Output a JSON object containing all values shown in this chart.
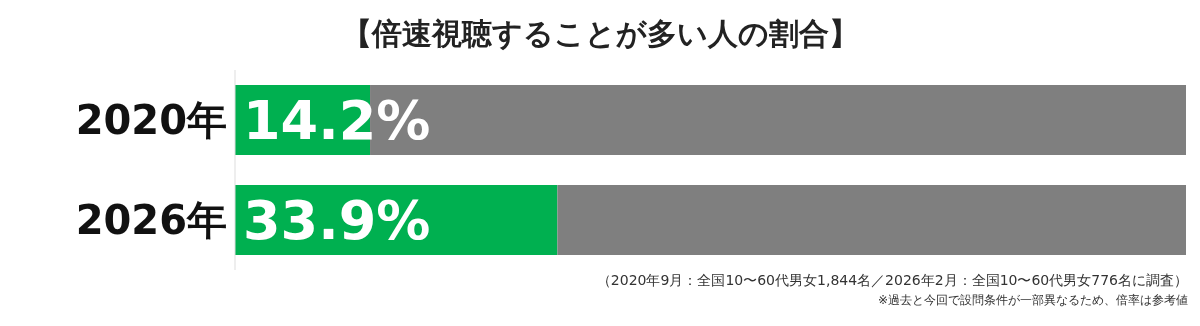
{
  "chart_data": {
    "type": "bar",
    "orientation": "horizontal",
    "stacked": true,
    "title": "【倍速視聴することが多い人の割合】",
    "categories": [
      "2020年",
      "2026年"
    ],
    "series": [
      {
        "color": "#00b050",
        "values": [
          14.2,
          33.9
        ],
        "value_labels": [
          "14.2%",
          "33.9%"
        ]
      },
      {
        "color": "#7f7f7f",
        "values": [
          85.8,
          66.1
        ]
      }
    ],
    "xlim": [
      0,
      100
    ],
    "tick_labels": "y",
    "legend": false,
    "grid": false,
    "annotations": [
      "（2020年9月：全国10〜60代男女1,844名／2026年2月：全国10〜60代男女776名に調査）",
      "※過去と今回で設問条件が一部異なるため、倍率は参考値"
    ]
  }
}
